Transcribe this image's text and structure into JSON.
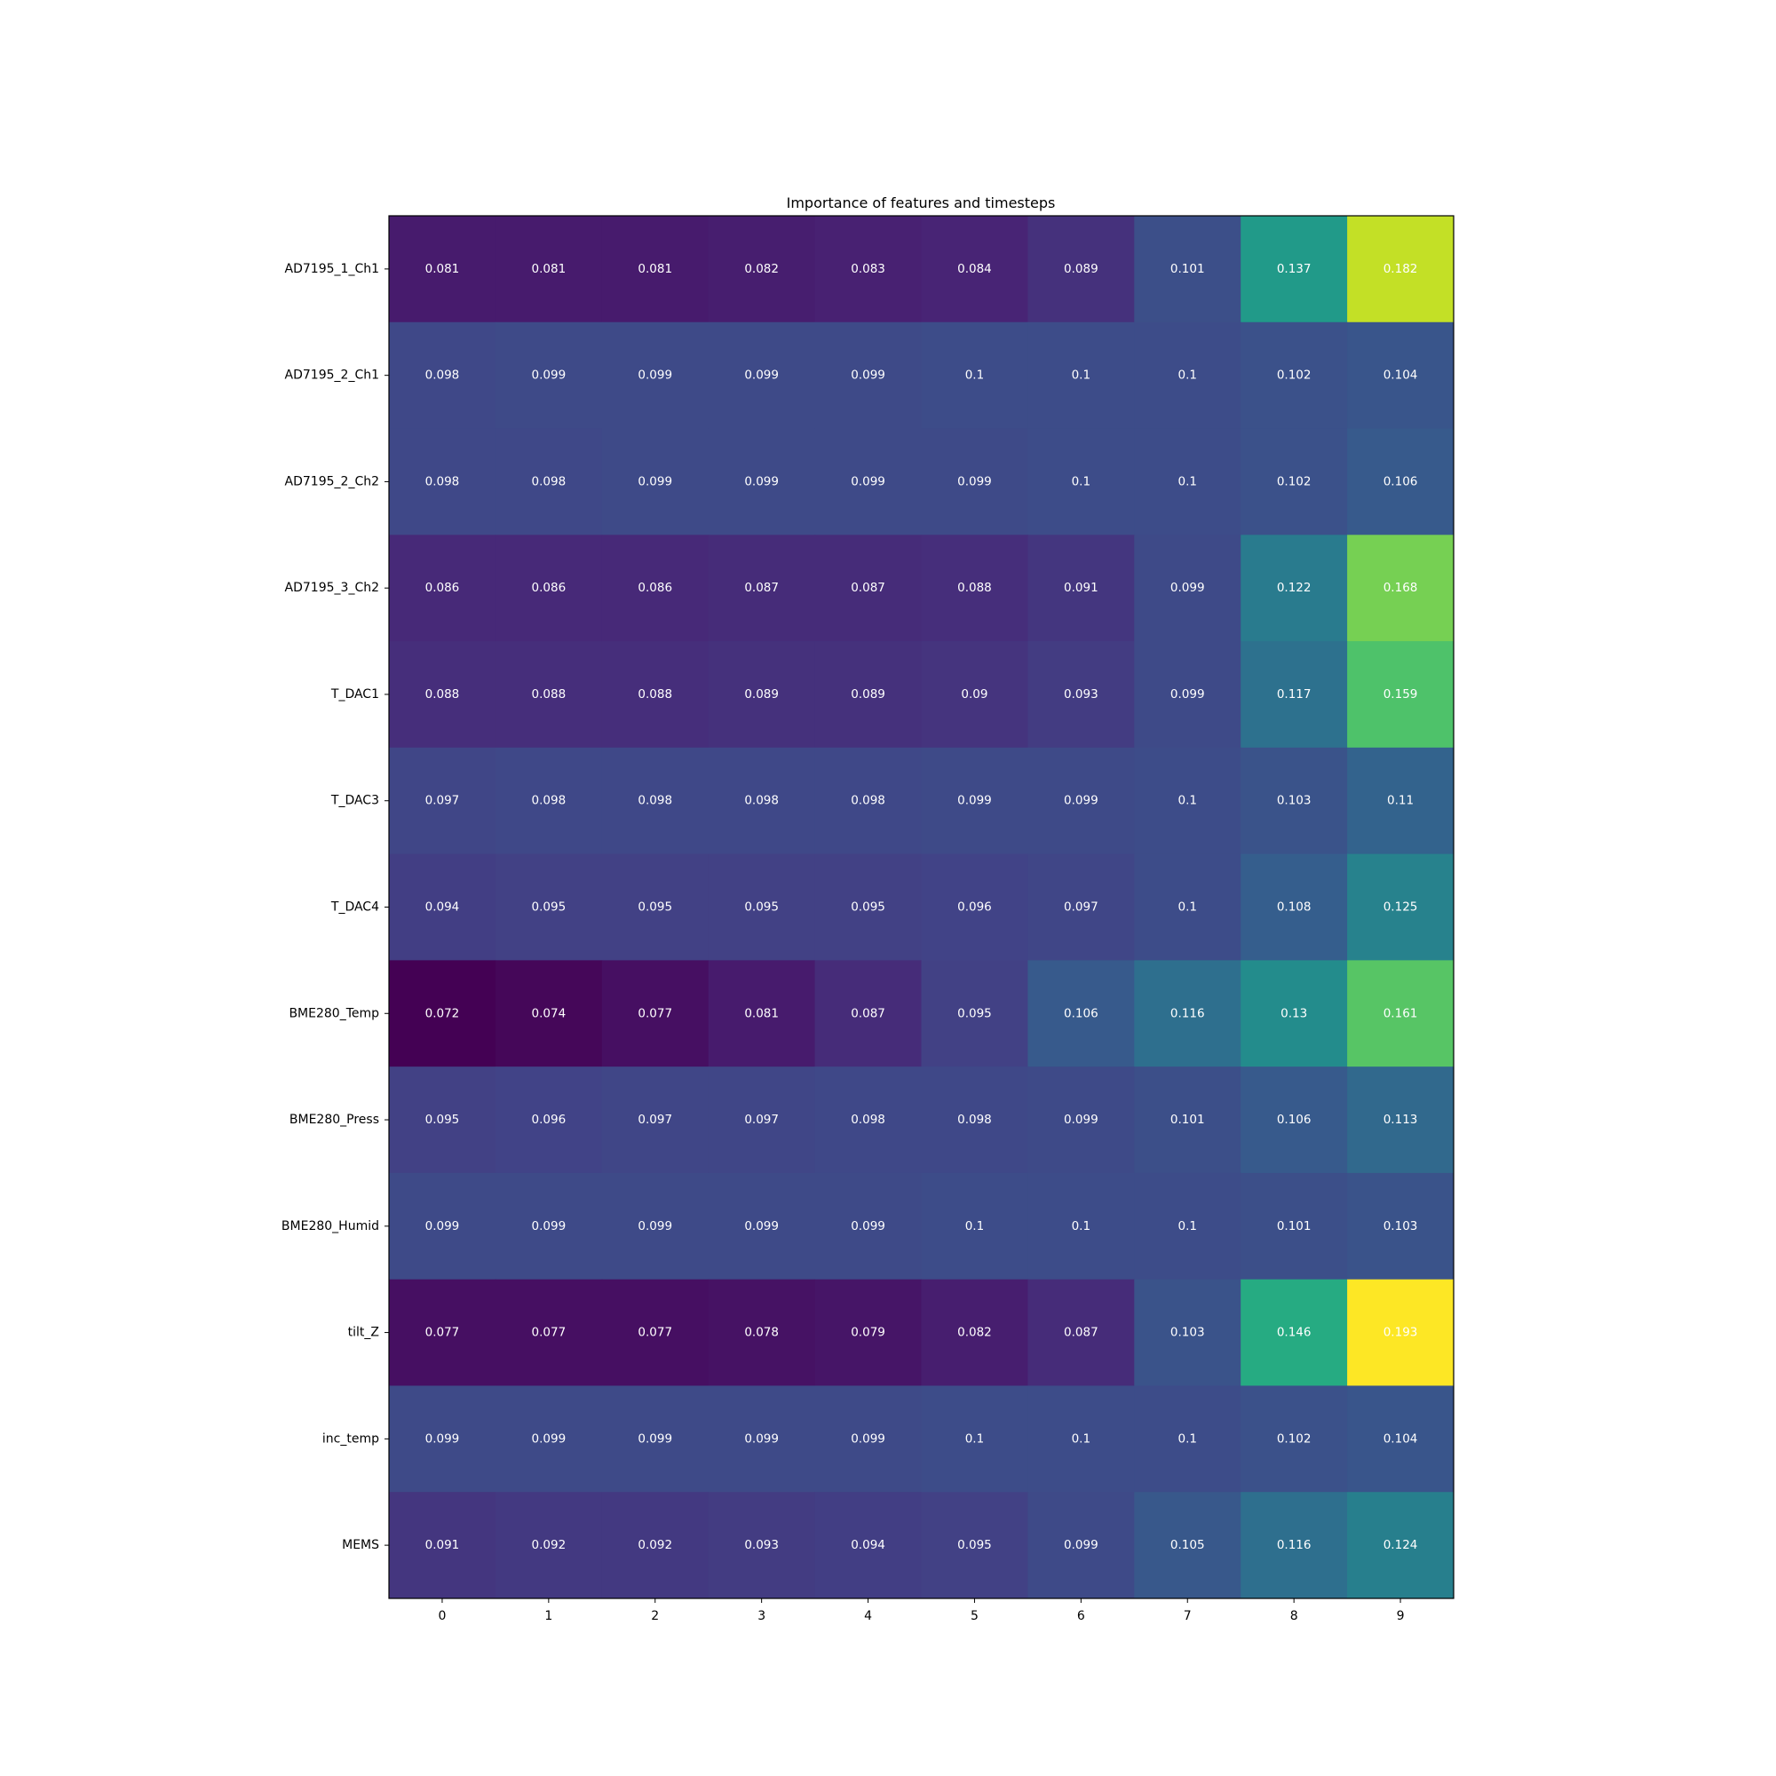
{
  "chart_data": {
    "type": "heatmap",
    "title": "Importance of features and timesteps",
    "xlabel": "",
    "ylabel": "",
    "colormap": "viridis",
    "value_range": [
      0.072,
      0.193
    ],
    "x_categories": [
      "0",
      "1",
      "2",
      "3",
      "4",
      "5",
      "6",
      "7",
      "8",
      "9"
    ],
    "y_categories": [
      "AD7195_1_Ch1",
      "AD7195_2_Ch1",
      "AD7195_2_Ch2",
      "AD7195_3_Ch2",
      "T_DAC1",
      "T_DAC3",
      "T_DAC4",
      "BME280_Temp",
      "BME280_Press",
      "BME280_Humid",
      "tilt_Z",
      "inc_temp",
      "MEMS"
    ],
    "values": [
      [
        0.081,
        0.081,
        0.081,
        0.082,
        0.083,
        0.084,
        0.089,
        0.101,
        0.137,
        0.182
      ],
      [
        0.098,
        0.099,
        0.099,
        0.099,
        0.099,
        0.1,
        0.1,
        0.1,
        0.102,
        0.104
      ],
      [
        0.098,
        0.098,
        0.099,
        0.099,
        0.099,
        0.099,
        0.1,
        0.1,
        0.102,
        0.106
      ],
      [
        0.086,
        0.086,
        0.086,
        0.087,
        0.087,
        0.088,
        0.091,
        0.099,
        0.122,
        0.168
      ],
      [
        0.088,
        0.088,
        0.088,
        0.089,
        0.089,
        0.09,
        0.093,
        0.099,
        0.117,
        0.159
      ],
      [
        0.097,
        0.098,
        0.098,
        0.098,
        0.098,
        0.099,
        0.099,
        0.1,
        0.103,
        0.11
      ],
      [
        0.094,
        0.095,
        0.095,
        0.095,
        0.095,
        0.096,
        0.097,
        0.1,
        0.108,
        0.125
      ],
      [
        0.072,
        0.074,
        0.077,
        0.081,
        0.087,
        0.095,
        0.106,
        0.116,
        0.13,
        0.161
      ],
      [
        0.095,
        0.096,
        0.097,
        0.097,
        0.098,
        0.098,
        0.099,
        0.101,
        0.106,
        0.113
      ],
      [
        0.099,
        0.099,
        0.099,
        0.099,
        0.099,
        0.1,
        0.1,
        0.1,
        0.101,
        0.103
      ],
      [
        0.077,
        0.077,
        0.077,
        0.078,
        0.079,
        0.082,
        0.087,
        0.103,
        0.146,
        0.193
      ],
      [
        0.099,
        0.099,
        0.099,
        0.099,
        0.099,
        0.1,
        0.1,
        0.1,
        0.102,
        0.104
      ],
      [
        0.091,
        0.092,
        0.092,
        0.093,
        0.094,
        0.095,
        0.099,
        0.105,
        0.116,
        0.124
      ]
    ],
    "grid": false,
    "legend": "none"
  }
}
